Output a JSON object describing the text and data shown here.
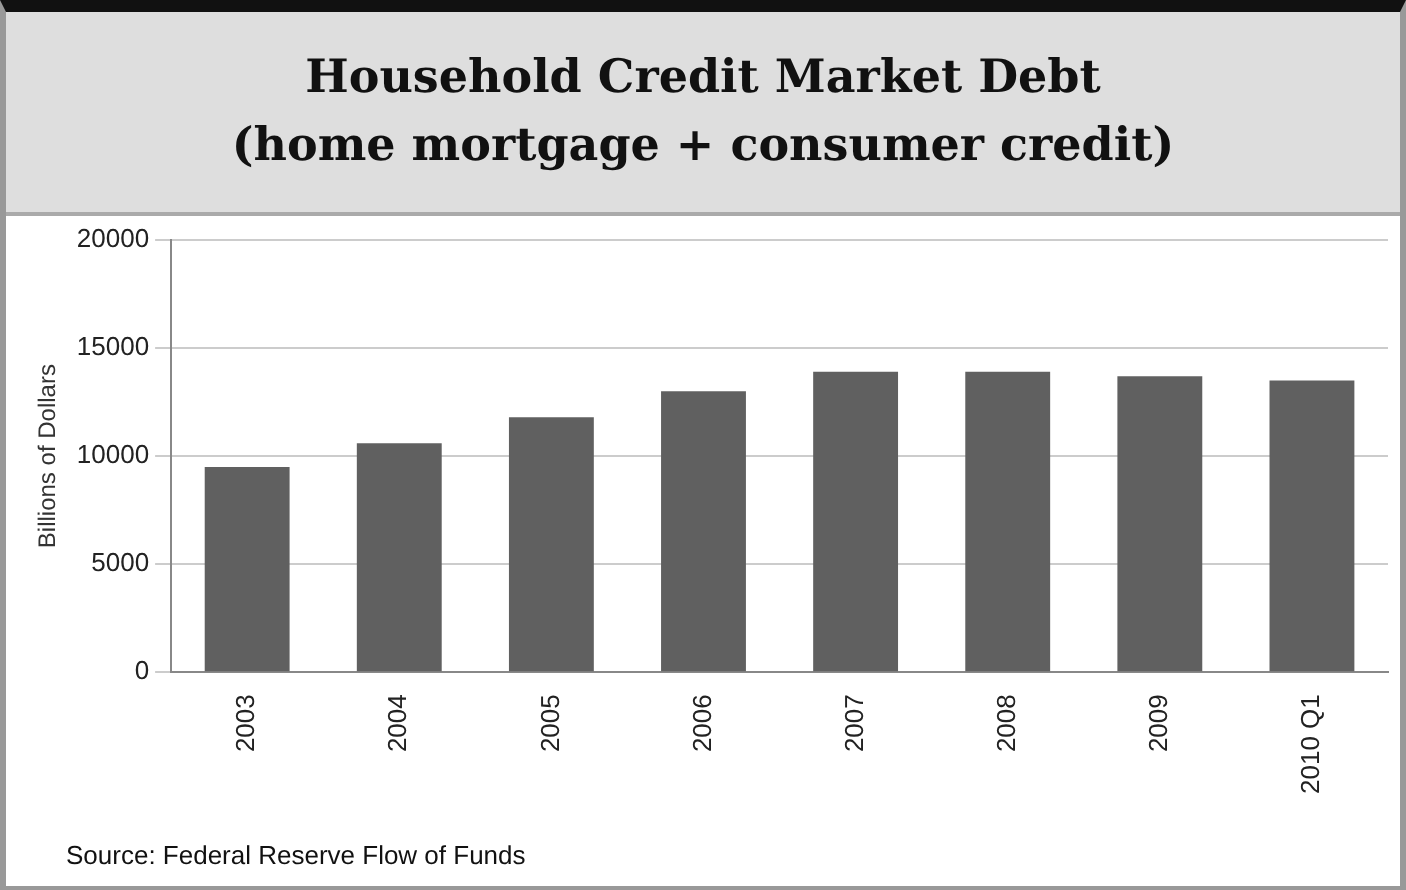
{
  "chart_data": {
    "type": "bar",
    "title": "Household Credit Market Debt\n(home mortgage + consumer credit)",
    "ylabel": "Billions of Dollars",
    "categories": [
      "2003",
      "2004",
      "2005",
      "2006",
      "2007",
      "2008",
      "2009",
      "2010 Q1"
    ],
    "values": [
      9500,
      10600,
      11800,
      13000,
      13900,
      13900,
      13700,
      13500
    ],
    "color": "#606060",
    "ylim": [
      0,
      20000
    ],
    "yticks": [
      0,
      5000,
      10000,
      15000,
      20000
    ],
    "grid": "y",
    "annotations": [
      "Source: Federal Reserve Flow of Funds"
    ]
  }
}
